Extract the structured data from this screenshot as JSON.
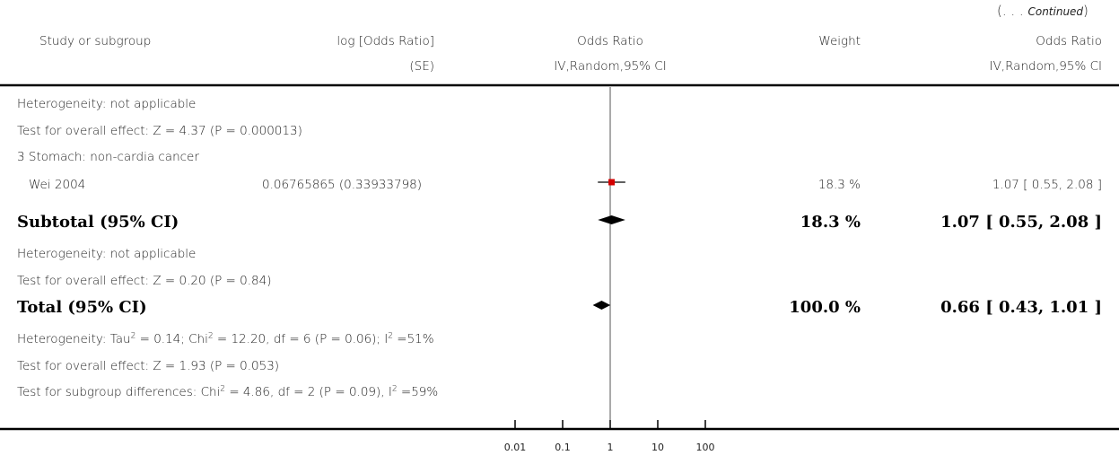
{
  "continued": {
    "open": "(. . . ",
    "word": "Continued",
    "close": ")"
  },
  "header": {
    "study": "Study or subgroup",
    "log_or": "log [Odds Ratio]",
    "log_or_se": "(SE)",
    "or_left": "Odds Ratio",
    "or_left_sub": "IV,Random,95% CI",
    "weight": "Weight",
    "or_right": "Odds Ratio",
    "or_right_sub": "IV,Random,95% CI"
  },
  "lines": {
    "het1": "Heterogeneity: not applicable",
    "test1": "Test for overall effect: Z = 4.37 (P = 0.000013)",
    "group3": "3 Stomach: non-cardia cancer",
    "study_name": "Wei 2004",
    "study_log": "0.06765865 (0.33933798)",
    "study_weight": "18.3 %",
    "study_ci": "1.07 [ 0.55, 2.08 ]",
    "subtotal_label": "Subtotal (95% CI)",
    "subtotal_weight": "18.3 %",
    "subtotal_ci": "1.07 [ 0.55, 2.08 ]",
    "het2": "Heterogeneity: not applicable",
    "test2": "Test for overall effect: Z = 0.20 (P = 0.84)",
    "total_label": "Total (95% CI)",
    "total_weight": "100.0 %",
    "total_ci": "0.66 [ 0.43, 1.01 ]",
    "het_total_a": "Heterogeneity: Tau",
    "het_total_b": " = 0.14; Chi",
    "het_total_c": " = 12.20, df = 6 (P = 0.06); I",
    "het_total_d": " =51%",
    "sq": "2",
    "test_total": "Test for overall effect: Z = 1.93 (P = 0.053)",
    "sub_diff_a": "Test for subgroup differences: Chi",
    "sub_diff_b": " = 4.86, df = 2 (P = 0.09), I",
    "sub_diff_c": " =59%"
  },
  "chart_data": {
    "type": "forest",
    "x_scale": "log",
    "xlim": [
      0.01,
      100
    ],
    "ticks": [
      0.01,
      0.1,
      1,
      10,
      100
    ],
    "tick_labels": [
      "0.01",
      "0.1",
      "1",
      "10",
      "100"
    ],
    "reference_line": 1,
    "studies": [
      {
        "name": "Wei 2004",
        "or": 1.07,
        "lower": 0.55,
        "upper": 2.08,
        "weight": 18.3
      }
    ],
    "diamonds": [
      {
        "name": "Subtotal (95% CI)",
        "or": 1.07,
        "lower": 0.55,
        "upper": 2.08
      },
      {
        "name": "Total (95% CI)",
        "or": 0.66,
        "lower": 0.43,
        "upper": 1.01
      }
    ],
    "colors": {
      "marker": "#d40000",
      "line": "#000000"
    }
  }
}
